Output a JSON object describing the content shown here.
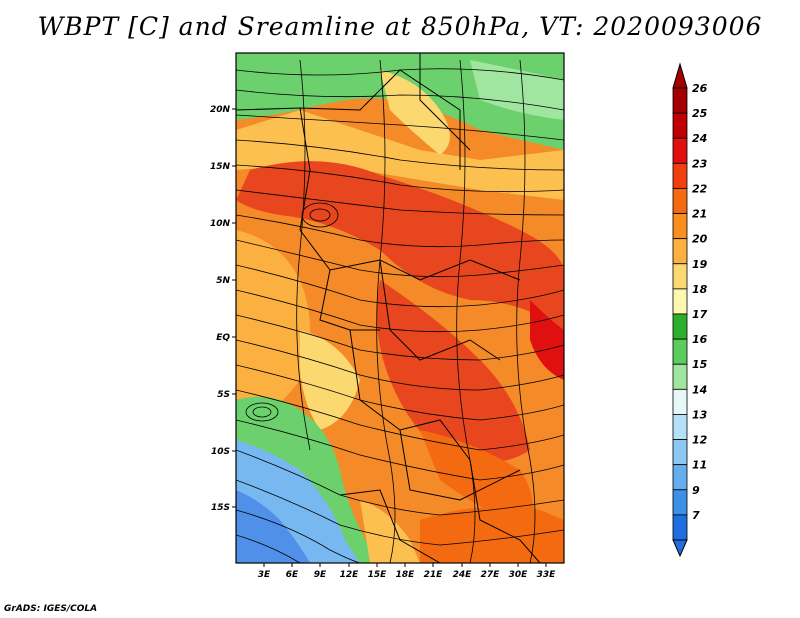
{
  "title": "WBPT [C] and Sreamline at 850hPa, VT: 2020093006",
  "credit": "GrADS: IGES/COLA",
  "lat_labels": [
    "20N",
    "15N",
    "10N",
    "5N",
    "EQ",
    "5S",
    "10S",
    "15S"
  ],
  "lon_labels": [
    "3E",
    "6E",
    "9E",
    "12E",
    "15E",
    "18E",
    "21E",
    "24E",
    "27E",
    "30E",
    "33E"
  ],
  "colorbar": {
    "labels": [
      "26",
      "25",
      "24",
      "23",
      "22",
      "21",
      "20",
      "19",
      "18",
      "17",
      "16",
      "15",
      "14",
      "13",
      "12",
      "11",
      "9",
      "7"
    ],
    "colors": [
      "#a50000",
      "#c00000",
      "#e01010",
      "#f04010",
      "#f46a10",
      "#f89020",
      "#fcb040",
      "#fcd870",
      "#fcf8b0",
      "#2cb02c",
      "#5ccc5c",
      "#a0e6a0",
      "#e6f8f8",
      "#b4e0f8",
      "#8cc8f4",
      "#64aef0",
      "#3c90e8",
      "#1e6ee0"
    ]
  },
  "colors": {
    "hot": "#e8461e",
    "warm": "#f48a28",
    "mild": "#fcc050",
    "cool_green": "#6cd06c",
    "cold_blue": "#78b8f0"
  }
}
